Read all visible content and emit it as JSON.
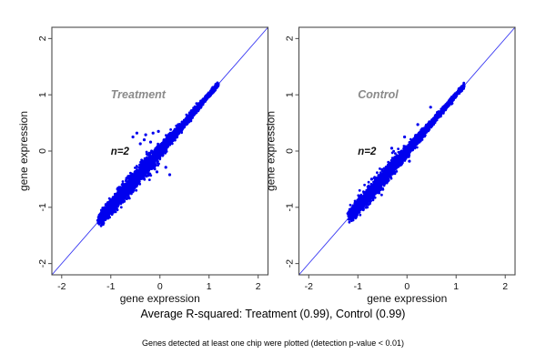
{
  "figure": {
    "caption": "Average R-squared: Treatment (0.99), Control (0.99)",
    "footnote": "Genes detected at least one chip were plotted (detection p-value < 0.01)",
    "colors": {
      "background": "#ffffff",
      "points": "#0000ee",
      "identity_line": "#3535f2",
      "panel_title": "#8a8a8a",
      "axis": "#4a4a4a",
      "text": "#000000"
    }
  },
  "chart_data": [
    {
      "type": "scatter",
      "panel": "left",
      "title": "Treatment",
      "annotation": "n=2",
      "xlabel": "gene expression",
      "ylabel": "gene expression",
      "xlim": [
        -2.2,
        2.2
      ],
      "ylim": [
        -2.2,
        2.2
      ],
      "xticks": [
        -2,
        -1,
        0,
        1,
        2
      ],
      "yticks": [
        -2,
        -1,
        0,
        1,
        2
      ],
      "grid": false,
      "identity_line": true,
      "r_squared": 0.99,
      "n_replicates": 2,
      "title_pos": [
        -1.0,
        1.0
      ],
      "annotation_pos": [
        -1.0,
        0.0
      ],
      "cluster": {
        "n": 3400,
        "x_min": -1.22,
        "x_max": 1.18,
        "density_skew": 1.25,
        "sd_base": 0.018,
        "sd_amp": 0.058,
        "sd_peak_at": -0.5,
        "sd_peak_width": 0.6,
        "seed": 42
      },
      "outliers": [
        [
          -0.47,
          0.32
        ],
        [
          -0.29,
          0.29
        ],
        [
          -0.14,
          0.32
        ],
        [
          -0.03,
          0.35
        ],
        [
          -0.32,
          0.2
        ],
        [
          -0.19,
          0.16
        ],
        [
          -0.55,
          0.25
        ],
        [
          -0.4,
          0.13
        ],
        [
          0.12,
          -0.29
        ],
        [
          -0.06,
          -0.37
        ],
        [
          0.2,
          -0.42
        ]
      ]
    },
    {
      "type": "scatter",
      "panel": "right",
      "title": "Control",
      "annotation": "n=2",
      "xlabel": "gene expression",
      "ylabel": "gene expression",
      "xlim": [
        -2.2,
        2.2
      ],
      "ylim": [
        -2.2,
        2.2
      ],
      "xticks": [
        -2,
        -1,
        0,
        1,
        2
      ],
      "yticks": [
        -2,
        -1,
        0,
        1,
        2
      ],
      "grid": false,
      "identity_line": true,
      "r_squared": 0.99,
      "n_replicates": 2,
      "title_pos": [
        -1.0,
        1.0
      ],
      "annotation_pos": [
        -1.0,
        0.0
      ],
      "cluster": {
        "n": 3400,
        "x_min": -1.15,
        "x_max": 1.16,
        "density_skew": 1.25,
        "sd_base": 0.016,
        "sd_amp": 0.05,
        "sd_peak_at": -0.55,
        "sd_peak_width": 0.6,
        "seed": 1337
      },
      "outliers": [
        [
          0.48,
          0.78
        ],
        [
          -0.31,
          0.05
        ],
        [
          -0.05,
          0.25
        ],
        [
          0.22,
          0.47
        ],
        [
          -0.72,
          -0.5
        ],
        [
          0.05,
          -0.18
        ]
      ]
    }
  ]
}
